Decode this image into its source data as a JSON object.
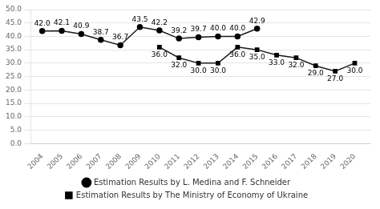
{
  "chart_data": {
    "type": "line",
    "x": [
      2004,
      2005,
      2006,
      2007,
      2008,
      2009,
      2010,
      2011,
      2012,
      2013,
      2014,
      2015,
      2016,
      2017,
      2018,
      2019,
      2020
    ],
    "xlim": [
      2003.4,
      2020.8
    ],
    "xticks": [
      2004,
      2005,
      2006,
      2007,
      2008,
      2009,
      2010,
      2011,
      2012,
      2013,
      2014,
      2015,
      2016,
      2017,
      2018,
      2019,
      2020
    ],
    "ylim": [
      0,
      50
    ],
    "yticks": [
      {
        "value": 0,
        "label": "0.0"
      },
      {
        "value": 5,
        "label": "5.0"
      },
      {
        "value": 10,
        "label": "10.0"
      },
      {
        "value": 15,
        "label": "15.0"
      },
      {
        "value": 20,
        "label": "20.0"
      },
      {
        "value": 25,
        "label": "25.0"
      },
      {
        "value": 30,
        "label": "30.0"
      },
      {
        "value": 35,
        "label": "35.0"
      },
      {
        "value": 40,
        "label": "40.0"
      },
      {
        "value": 45,
        "label": "45.0"
      },
      {
        "value": 50,
        "label": "50.0"
      }
    ],
    "grid": true,
    "legend": "bottom",
    "data_labels": true,
    "series": [
      {
        "name": "Estimation Results by L. Medina and F. Schneider",
        "color": "#1a1a1a",
        "marker": "circle",
        "values": [
          42.0,
          42.1,
          40.9,
          38.7,
          36.7,
          43.5,
          42.2,
          39.2,
          39.7,
          40.0,
          40.0,
          42.9,
          null,
          null,
          null,
          null,
          null
        ],
        "value_labels": [
          "42.0",
          "42.1",
          "40.9",
          "38.7",
          "36.7",
          "43.5",
          "42.2",
          "39.2",
          "39.7",
          "40.0",
          "40.0",
          "42.9",
          null,
          null,
          null,
          null,
          null
        ]
      },
      {
        "name": "Estimation Results by The Ministry of Economy of Ukraine",
        "color": "#1a1a1a",
        "marker": "square",
        "values": [
          null,
          null,
          null,
          null,
          null,
          null,
          36.0,
          32.0,
          30.0,
          30.0,
          36.0,
          35.0,
          33.0,
          32.0,
          29.0,
          27.0,
          30.0
        ],
        "value_labels": [
          null,
          null,
          null,
          null,
          null,
          null,
          "36.0",
          "32.0",
          "30.0",
          "30.0",
          "36.0",
          "35.0",
          "33.0",
          "32.0",
          "29.0",
          "27.0",
          "30.0"
        ]
      }
    ]
  }
}
